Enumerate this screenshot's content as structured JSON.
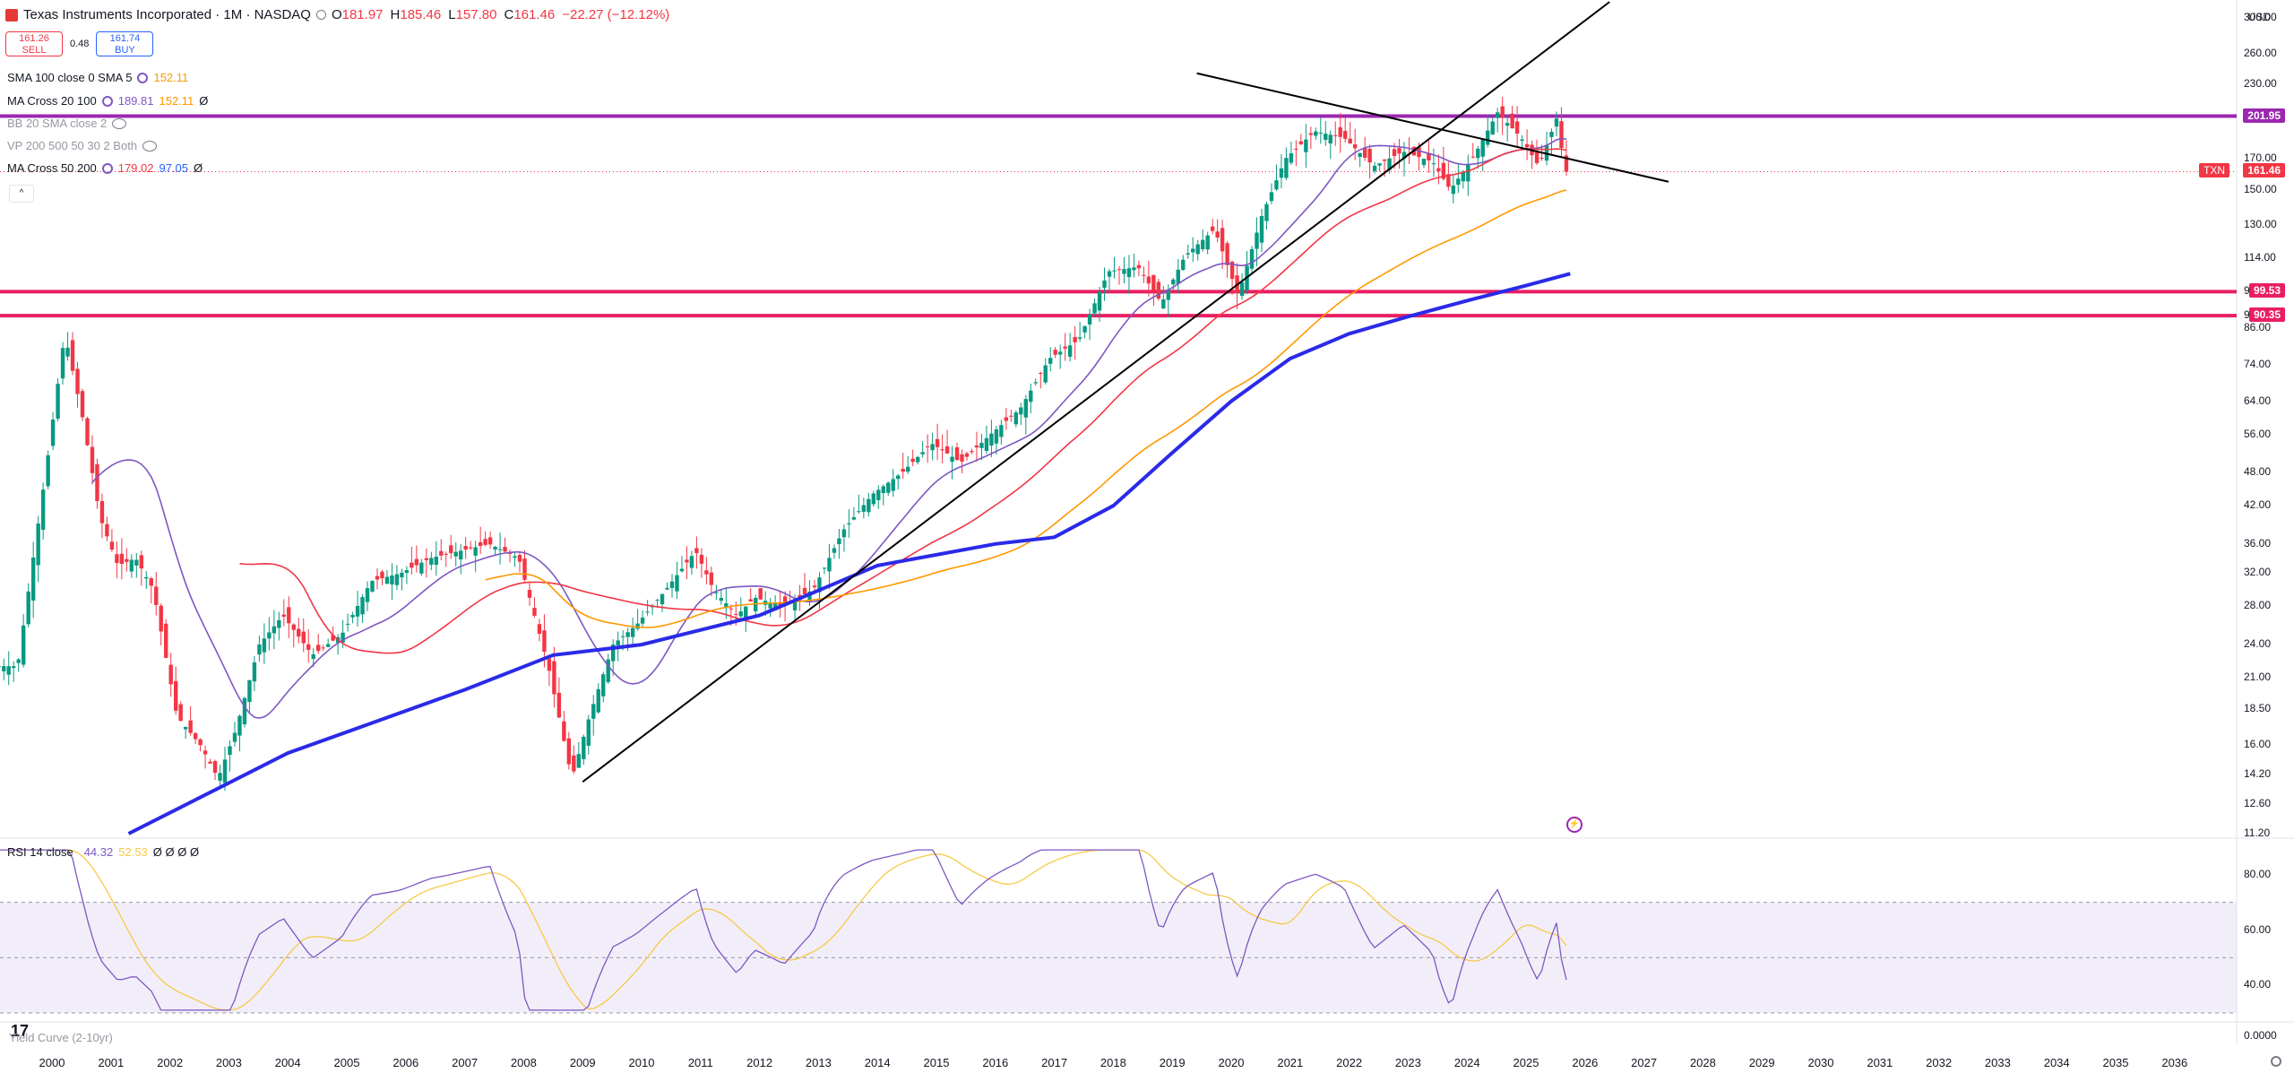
{
  "header": {
    "title": "Texas Instruments Incorporated · 1M · NASDAQ",
    "open_label": "O",
    "open": "181.97",
    "high_label": "H",
    "high": "185.46",
    "low_label": "L",
    "low": "157.80",
    "close_label": "C",
    "close": "161.46",
    "change": "−22.27 (−12.12%)"
  },
  "trade": {
    "sell_price": "161.26",
    "sell_label": "SELL",
    "spread": "0.48",
    "buy_price": "161.74",
    "buy_label": "BUY"
  },
  "indicators": [
    {
      "name": "SMA 100 close 0 SMA 5",
      "v1": "152.11",
      "v1_color": "#ff9800",
      "v2": "",
      "v3": ""
    },
    {
      "name": "MA Cross 20 100",
      "v1": "189.81",
      "v1_color": "#7e57c2",
      "v2": "152.11",
      "v3": "Ø"
    },
    {
      "name": "BB 20 SMA close 2",
      "v1": "",
      "v2": "",
      "v3": ""
    },
    {
      "name": "VP 200 500 50 30 2 Both",
      "v1": "",
      "v2": "",
      "v3": ""
    },
    {
      "name": "MA Cross 50 200",
      "v1": "179.02",
      "v1_color": "#f23645",
      "v2": "97.05",
      "v3": "Ø"
    }
  ],
  "rsi": {
    "name": "RSI 14 close",
    "value": "44.32",
    "ma": "52.53",
    "rest": "Ø Ø Ø Ø"
  },
  "yield_curve": {
    "name": "Yield Curve (2-10yr)"
  },
  "currency": "USD",
  "price_axis_ticks": [
    "300.00",
    "260.00",
    "230.00",
    "201.95",
    "170.00",
    "150.00",
    "130.00",
    "114.00",
    "99.53",
    "90.35",
    "86.00",
    "74.00",
    "64.00",
    "56.00",
    "48.00",
    "42.00",
    "36.00",
    "32.00",
    "28.00",
    "24.00",
    "21.00",
    "18.50",
    "16.00",
    "14.20",
    "12.60",
    "11.20"
  ],
  "rsi_axis_ticks": [
    "80.00",
    "60.00",
    "40.00"
  ],
  "yc_axis_ticks": [
    "0.0000"
  ],
  "price_tags": [
    {
      "label": "201.95",
      "color": "#9c27b0"
    },
    {
      "label": "99.53",
      "color": "#e91e63"
    },
    {
      "label": "90.35",
      "color": "#e91e63"
    }
  ],
  "last_price_tag": {
    "symbol": "TXN",
    "value": "161.46",
    "color": "#f23645"
  },
  "x_axis_years": [
    "2000",
    "2001",
    "2002",
    "2003",
    "2004",
    "2005",
    "2006",
    "2007",
    "2008",
    "2009",
    "2010",
    "2011",
    "2012",
    "2013",
    "2014",
    "2015",
    "2016",
    "2017",
    "2018",
    "2019",
    "2020",
    "2021",
    "2022",
    "2023",
    "2024",
    "2025",
    "2026",
    "2027",
    "2028",
    "2029",
    "2030",
    "2031",
    "2032",
    "2033",
    "2034",
    "2035",
    "2036"
  ],
  "chart_data": {
    "type": "candlestick",
    "symbol": "TXN",
    "interval": "1M",
    "scale": "log",
    "ylim": [
      11.2,
      300
    ],
    "horizontal_levels": [
      201.95,
      99.53,
      90.35
    ],
    "close_series": {
      "x": [
        1999.5,
        2000.0,
        2000.3,
        2000.6,
        2000.9,
        2001.2,
        2001.5,
        2001.8,
        2002.2,
        2002.6,
        2002.9,
        2003.2,
        2003.6,
        2004.0,
        2004.5,
        2005.0,
        2005.5,
        2006.0,
        2006.5,
        2007.0,
        2007.5,
        2008.0,
        2008.5,
        2008.9,
        2009.2,
        2009.6,
        2010.0,
        2010.5,
        2011.0,
        2011.3,
        2011.7,
        2012.0,
        2012.5,
        2013.0,
        2013.5,
        2014.0,
        2014.5,
        2015.0,
        2015.5,
        2016.0,
        2016.5,
        2017.0,
        2017.5,
        2018.0,
        2018.5,
        2018.9,
        2019.3,
        2019.8,
        2020.2,
        2020.6,
        2021.0,
        2021.5,
        2022.0,
        2022.5,
        2023.0,
        2023.5,
        2023.8,
        2024.2,
        2024.6,
        2025.0,
        2025.3,
        2025.6,
        2025.75
      ],
      "values": [
        22,
        50,
        84,
        60,
        40,
        33,
        34,
        30,
        18,
        16,
        14,
        17,
        24,
        27,
        23,
        25,
        31,
        32,
        34,
        35,
        36,
        34,
        22,
        14,
        18,
        24,
        26,
        30,
        35,
        30,
        27,
        29,
        28,
        30,
        38,
        44,
        48,
        54,
        50,
        56,
        62,
        76,
        82,
        108,
        110,
        95,
        115,
        128,
        98,
        135,
        170,
        190,
        185,
        165,
        175,
        168,
        150,
        172,
        205,
        185,
        165,
        200,
        161.46
      ]
    },
    "trendlines": [
      {
        "from": [
          "2009-01",
          13.8
        ],
        "to": [
          "2026-06",
          320
        ]
      },
      {
        "from": [
          "2019-06",
          240
        ],
        "to": [
          "2027-06",
          155
        ]
      }
    ],
    "rsi": {
      "value": 44.32,
      "ma": 52.53,
      "ylim": [
        30,
        90
      ]
    }
  }
}
